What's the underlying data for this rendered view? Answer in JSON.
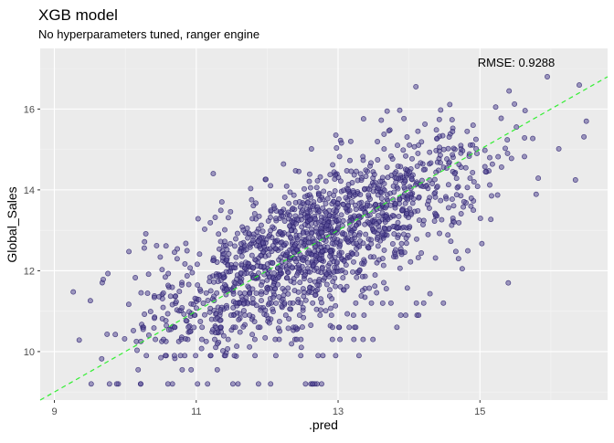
{
  "chart_data": {
    "type": "scatter",
    "title": "XGB model",
    "subtitle": "No hyperparameters tuned, ranger engine",
    "xlabel": ".pred",
    "ylabel": "Global_Sales",
    "xlim": [
      8.8,
      16.8
    ],
    "ylim": [
      8.8,
      17.5
    ],
    "x_ticks": [
      9,
      11,
      13,
      15
    ],
    "y_ticks": [
      10,
      12,
      14,
      16
    ],
    "annotation": "RMSE:  0.9288",
    "reference_line": {
      "slope": 1,
      "intercept": 0,
      "color": "#33ee33",
      "style": "dashed"
    },
    "point_color": "#2b1f6e",
    "panel_background": "#ebebeb",
    "grid": true,
    "points_description_note": "",
    "x": [],
    "y": []
  }
}
